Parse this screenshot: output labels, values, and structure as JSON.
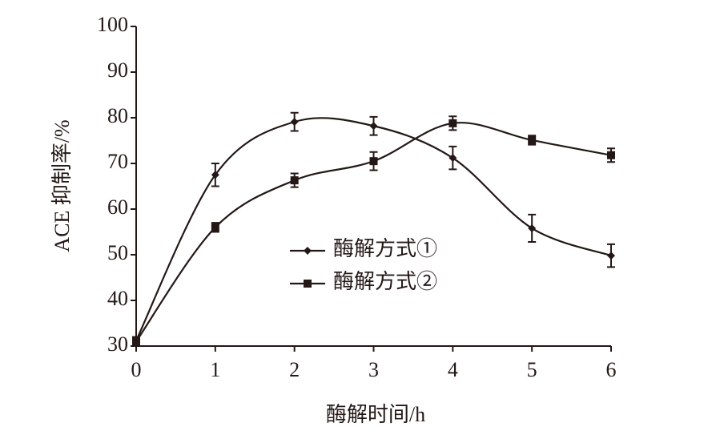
{
  "chart_data": {
    "type": "line",
    "x_label": "酶解时间/h",
    "y_label": "ACE 抑制率/%",
    "x": [
      0,
      1,
      2,
      3,
      4,
      5,
      6
    ],
    "series": [
      {
        "name": "酶解方式①",
        "color": "#231815",
        "marker": "diamond",
        "values": [
          31.2,
          67.5,
          79.1,
          78.2,
          71.2,
          55.8,
          49.8
        ],
        "errors": [
          0.8,
          2.5,
          2,
          2,
          2.5,
          3,
          2.5
        ]
      },
      {
        "name": "酶解方式②",
        "color": "#231815",
        "marker": "square",
        "values": [
          31,
          56,
          66.3,
          70.5,
          78.8,
          75.1,
          71.8
        ],
        "errors": [
          0.8,
          1,
          1.5,
          2,
          1.5,
          1,
          1.5
        ]
      }
    ],
    "xlim": [
      0,
      6
    ],
    "xticks": [
      0,
      1,
      2,
      3,
      4,
      5,
      6
    ],
    "ylim": [
      30,
      100
    ],
    "yticks": [
      30,
      40,
      50,
      60,
      70,
      80,
      90,
      100
    ],
    "smooth": true,
    "legend": "center"
  }
}
